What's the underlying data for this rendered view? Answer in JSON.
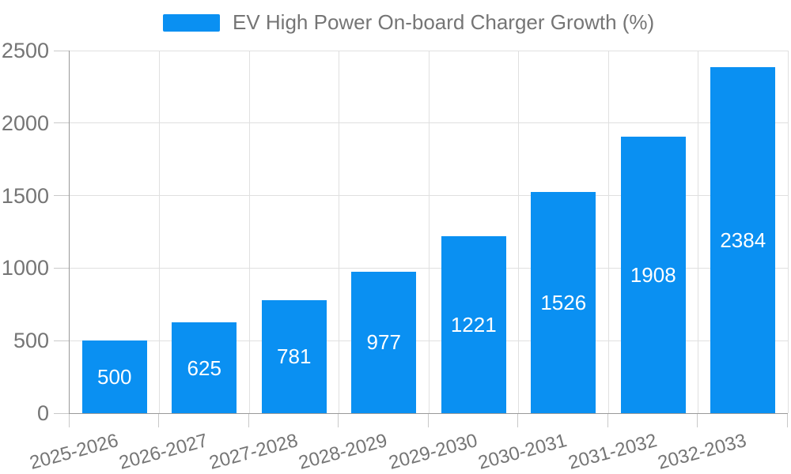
{
  "chart_data": {
    "type": "bar",
    "title": "EV High Power On-board Charger Growth (%)",
    "legend": {
      "label": "EV High Power On-board Charger Growth (%)",
      "position": "top",
      "swatch_color": "#0a90f2"
    },
    "categories": [
      "2025-2026",
      "2026-2027",
      "2027-2028",
      "2028-2029",
      "2029-2030",
      "2030-2031",
      "2031-2032",
      "2032-2033"
    ],
    "values": [
      500,
      625,
      781,
      977,
      1221,
      1526,
      1908,
      2384
    ],
    "xlabel": "",
    "ylabel": "",
    "ylim": [
      0,
      2500
    ],
    "yticks": [
      0,
      500,
      1000,
      1500,
      2000,
      2500
    ],
    "grid": true,
    "x_label_rotation_deg": -15,
    "legend_position": "top",
    "bar_color": "#0a90f2",
    "value_label_color": "#ffffff"
  },
  "style": {
    "background": "#ffffff",
    "gridline_color": "#e0e0e0",
    "axis_line_color": "#9a9a9a",
    "tick_color": "#c9c9c9",
    "axis_text_color": "#757575"
  }
}
